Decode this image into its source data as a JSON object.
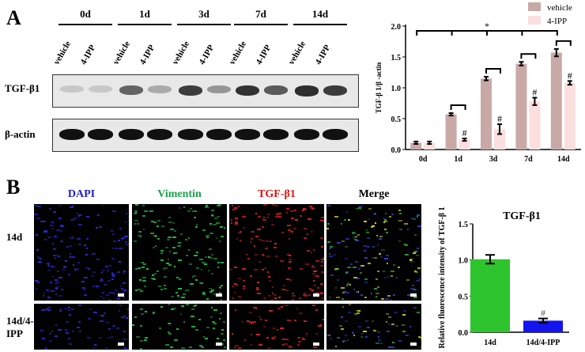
{
  "panel_a": {
    "letter": "A",
    "timepoints": [
      "0d",
      "1d",
      "3d",
      "7d",
      "14d"
    ],
    "lane_labels": [
      "vehicle",
      "4-IPP"
    ],
    "rows": [
      {
        "label": "TGF-β1",
        "intensity_vehicle": [
          0.15,
          0.65,
          0.85,
          0.9,
          0.92
        ],
        "intensity_4ipp": [
          0.15,
          0.3,
          0.4,
          0.7,
          0.85
        ]
      },
      {
        "label": "β-actin"
      }
    ]
  },
  "panel_b": {
    "letter": "B",
    "columns": [
      {
        "label": "DAPI",
        "color": "#1e1ec8"
      },
      {
        "label": "Vimentin",
        "color": "#1aa34a"
      },
      {
        "label": "TGF-β1",
        "color": "#e01010"
      },
      {
        "label": "Merge",
        "color": "#000000"
      }
    ],
    "rows": [
      "14d",
      "14d/4-IPP"
    ]
  },
  "chart_data": [
    {
      "type": "bar",
      "categories": [
        "0d",
        "1d",
        "3d",
        "7d",
        "14d"
      ],
      "ylabel": "TGF-β 1/β -actin",
      "ylim": [
        0,
        2.0
      ],
      "yticks": [
        "0.0",
        "0.5",
        "1.0",
        "1.5",
        "2.0"
      ],
      "legend_position": "top-right",
      "series": [
        {
          "name": "vehicle",
          "color": "#c9a9a6",
          "values": [
            0.11,
            0.57,
            1.15,
            1.39,
            1.57
          ],
          "errors": [
            0.02,
            0.02,
            0.03,
            0.03,
            0.06
          ]
        },
        {
          "name": "4-IPP",
          "color": "#fbdede",
          "values": [
            0.11,
            0.16,
            0.33,
            0.78,
            1.08
          ],
          "errors": [
            0.02,
            0.02,
            0.08,
            0.06,
            0.03
          ]
        }
      ],
      "annotations": {
        "star": "*",
        "hash": "#"
      }
    },
    {
      "type": "bar",
      "title": "TGF-β1",
      "categories": [
        "14d",
        "14d/4-IPP"
      ],
      "ylabel": "Relative fluorescence intensity of TGF-β 1",
      "ylim": [
        0,
        1.5
      ],
      "yticks": [
        "0.0",
        "0.5",
        "1.0",
        "1.5"
      ],
      "values": [
        1.01,
        0.16
      ],
      "errors": [
        0.06,
        0.03
      ],
      "colors": [
        "#2ec42e",
        "#1414f0"
      ],
      "annotations": {
        "hash": "#"
      }
    }
  ]
}
